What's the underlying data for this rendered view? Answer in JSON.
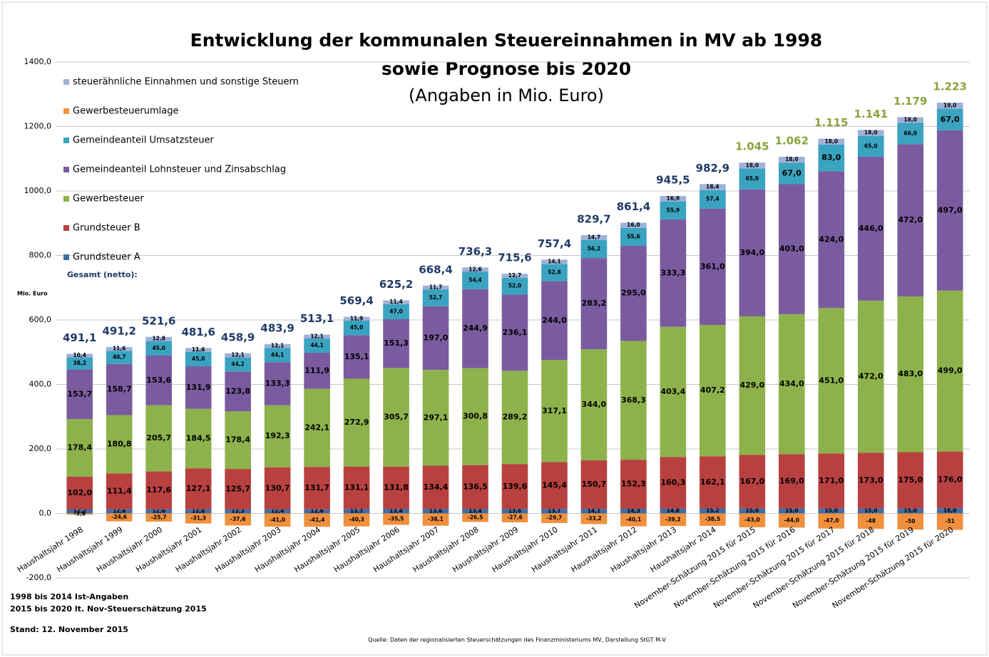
{
  "chart_data": {
    "type": "stacked_bar",
    "title": "Entwicklung der kommunalen Steuereinnahmen in MV ab 1998",
    "subtitle": "sowie Prognose bis 2020",
    "subtitle2": "(Angaben in Mio. Euro)",
    "y_label": "Mio. Euro",
    "totals_legend": "Gesamt (netto):",
    "notes": [
      "1998 bis 2014 Ist-Angaben",
      "2015 bis 2020 lt. Nov-Steuerschätzung 2015",
      "Stand: 12. November 2015"
    ],
    "source": "Quelle: Daten der regionalisierten Steuerschätzungen des Finanzministeriums MV, Darstellung StGT M-V",
    "categories": [
      "Haushaltsjahr 1998",
      "Haushaltsjahr 1999",
      "Haushaltsjahr 2000",
      "Haushaltsjahr 2001",
      "Haushaltsjahr 2002",
      "Haushaltsjahr 2003",
      "Haushaltsjahr 2004",
      "Haushaltsjahr 2005",
      "Haushaltsjahr 2006",
      "Haushaltsjahr 2007",
      "Haushaltsjahr 2008",
      "Haushaltsjahr 2009",
      "Haushaltsjahr 2010",
      "Haushaltsjahr 2011",
      "Haushaltsjahr 2012",
      "Haushaltsjahr 2013",
      "Haushaltsjahr 2014",
      "November-Schätzung 2015 für 2015",
      "November-Schätzung 2015 für 2016",
      "November-Schätzung 2015 für 2017",
      "November-Schätzung 2015 für 2018",
      "November-Schätzung 2015 für 2019",
      "November-Schätzung 2015 für 2020"
    ],
    "ylim": [
      -200,
      1400
    ],
    "yticks": [
      {
        "value": -200,
        "label": "-200,0"
      },
      {
        "value": 0,
        "label": "0,0"
      },
      {
        "value": 200,
        "label": "200,0"
      },
      {
        "value": 400,
        "label": "400,0"
      },
      {
        "value": 600,
        "label": "600,0"
      },
      {
        "value": 800,
        "label": "800,0"
      },
      {
        "value": 1000,
        "label": "1000,0"
      },
      {
        "value": 1200,
        "label": "1200,0"
      },
      {
        "value": 1400,
        "label": "1400,0"
      }
    ],
    "grid": true,
    "series": [
      {
        "name": "Grundsteuer A",
        "color": "#3e6ea8",
        "values": [
          12.2,
          12.6,
          12.6,
          12.8,
          12.3,
          12.4,
          12.6,
          13.7,
          13.4,
          13.6,
          13.4,
          13.6,
          13.7,
          14.1,
          14.3,
          14.8,
          15.2,
          15.0,
          15.0,
          15.0,
          15.0,
          15.0,
          16.0
        ],
        "value_labels": [
          "12,2",
          "12,6",
          "12,6",
          "12,8",
          "12,3",
          "12,4",
          "12,6",
          "13,7",
          "13,4",
          "13,6",
          "13,4",
          "13,6",
          "13,7",
          "14,1",
          "14,3",
          "14,8",
          "15,2",
          "15,0",
          "15,0",
          "15,0",
          "15,0",
          "15,0",
          "16,0"
        ]
      },
      {
        "name": "Grundsteuer B",
        "color": "#b8413f",
        "values": [
          102.0,
          111.4,
          117.6,
          127.1,
          125.7,
          130.7,
          131.7,
          131.1,
          131.8,
          134.4,
          136.5,
          139.6,
          145.4,
          150.7,
          152.3,
          160.3,
          162.1,
          167.0,
          169.0,
          171.0,
          173.0,
          175.0,
          176.0
        ],
        "value_labels": [
          "102,0",
          "111,4",
          "117,6",
          "127,1",
          "125,7",
          "130,7",
          "131,7",
          "131,1",
          "131,8",
          "134,4",
          "136,5",
          "139,6",
          "145,4",
          "150,7",
          "152,3",
          "160,3",
          "162,1",
          "167,0",
          "169,0",
          "171,0",
          "173,0",
          "175,0",
          "176,0"
        ]
      },
      {
        "name": "Gewerbesteuer",
        "color": "#8db24b",
        "values": [
          178.4,
          180.8,
          205.7,
          184.5,
          178.4,
          192.3,
          242.1,
          272.9,
          305.7,
          297.1,
          300.8,
          289.2,
          317.1,
          344.0,
          368.3,
          403.4,
          407.2,
          429.0,
          434.0,
          451.0,
          472.0,
          483.0,
          499.0
        ],
        "value_labels": [
          "178,4",
          "180,8",
          "205,7",
          "184,5",
          "178,4",
          "192,3",
          "242,1",
          "272,9",
          "305,7",
          "297,1",
          "300,8",
          "289,2",
          "317,1",
          "344,0",
          "368,3",
          "403,4",
          "407,2",
          "429,0",
          "434,0",
          "451,0",
          "472,0",
          "483,0",
          "499,0"
        ]
      },
      {
        "name": "Gemeindeanteil Lohnsteuer und Zinsabschlag",
        "color": "#7b5b9f",
        "values": [
          153.7,
          158.7,
          153.6,
          131.9,
          123.8,
          133.3,
          111.9,
          135.1,
          151.3,
          197.0,
          244.9,
          236.1,
          244.0,
          283.2,
          295.0,
          333.3,
          361.0,
          394.0,
          403.0,
          424.0,
          446.0,
          472.0,
          497.0
        ],
        "value_labels": [
          "153,7",
          "158,7",
          "153,6",
          "131,9",
          "123,8",
          "133,3",
          "111,9",
          "135,1",
          "151,3",
          "197,0",
          "244,9",
          "236,1",
          "244,0",
          "283,2",
          "295,0",
          "333,3",
          "361,0",
          "394,0",
          "403,0",
          "424,0",
          "446,0",
          "472,0",
          "497,0"
        ]
      },
      {
        "name": "Gemeindeanteil Umsatzsteuer",
        "color": "#3aa3c0",
        "values": [
          38.2,
          40.7,
          45.0,
          45.0,
          44.2,
          44.1,
          44.1,
          45.0,
          47.0,
          52.7,
          54.4,
          52.0,
          52.8,
          56.2,
          55.6,
          55.9,
          57.4,
          65.0,
          67.0,
          83.0,
          65.0,
          66.0,
          67.0
        ],
        "value_labels": [
          "38,2",
          "40,7",
          "45,0",
          "45,0",
          "44,2",
          "44,1",
          "44,1",
          "45,0",
          "47,0",
          "52,7",
          "54,4",
          "52,0",
          "52,8",
          "56,2",
          "55,6",
          "55,9",
          "57,4",
          "65,0",
          "67,0",
          "83,0",
          "65,0",
          "66,0",
          "67,0"
        ]
      },
      {
        "name": "Gewerbesteuerumlage",
        "color": "#f0903e",
        "values": [
          -3.8,
          -24.6,
          -25.7,
          -31.3,
          -37.6,
          -41.0,
          -41.4,
          -40.3,
          -35.5,
          -38.1,
          -26.5,
          -27.6,
          -29.7,
          -33.2,
          -40.1,
          -39.2,
          -38.5,
          -43.0,
          -44.0,
          -47.0,
          -48,
          -50,
          -51
        ],
        "value_labels": [
          "-3,8",
          "-24,6",
          "-25,7",
          "-31,3",
          "-37,6",
          "-41,0",
          "-41,4",
          "-40,3",
          "-35,5",
          "-38,1",
          "-26,5",
          "-27,6",
          "-29,7",
          "-33,2",
          "-40,1",
          "-39,2",
          "-38,5",
          "-43,0",
          "-44,0",
          "-47,0",
          "-48",
          "-50",
          "-51"
        ]
      },
      {
        "name": "steuerähnliche Einnahmen und sonstige Steuern",
        "color": "#9fb1d9",
        "values": [
          10.4,
          11.6,
          12.8,
          11.6,
          12.1,
          12.1,
          12.1,
          11.9,
          11.4,
          11.7,
          12.6,
          12.7,
          14.1,
          14.7,
          16.0,
          16.9,
          18.4,
          18.0,
          18.0,
          18.0,
          18.0,
          18.0,
          19.0
        ],
        "value_labels": [
          "10,4",
          "11,6",
          "12,8",
          "11,6",
          "12,1",
          "12,1",
          "12,1",
          "11,9",
          "11,4",
          "11,7",
          "12,6",
          "12,7",
          "14,1",
          "14,7",
          "16,0",
          "16,9",
          "18,4",
          "18,0",
          "18,0",
          "18,0",
          "18,0",
          "18,0",
          "19,0"
        ]
      }
    ],
    "totals": {
      "values": [
        491.1,
        491.2,
        521.6,
        481.6,
        458.9,
        483.9,
        513.1,
        569.4,
        625.2,
        668.4,
        736.3,
        715.6,
        757.4,
        829.7,
        861.4,
        945.5,
        982.9,
        1045,
        1062,
        1115,
        1141,
        1179,
        1223
      ],
      "value_labels": [
        "491,1",
        "491,2",
        "521,6",
        "481,6",
        "458,9",
        "483,9",
        "513,1",
        "569,4",
        "625,2",
        "668,4",
        "736,3",
        "715,6",
        "757,4",
        "829,7",
        "861,4",
        "945,5",
        "982,9",
        "1.045",
        "1.062",
        "1.115",
        "1.141",
        "1.179",
        "1.223"
      ],
      "colors": [
        "#1f3a66",
        "#1f3a66",
        "#1f3a66",
        "#1f3a66",
        "#1f3a66",
        "#1f3a66",
        "#1f3a66",
        "#1f3a66",
        "#1f3a66",
        "#1f3a66",
        "#1f3a66",
        "#1f3a66",
        "#1f3a66",
        "#1f3a66",
        "#1f3a66",
        "#1f3a66",
        "#1f3a66",
        "#8aa33a",
        "#8aa33a",
        "#8aa33a",
        "#8aa33a",
        "#8aa33a",
        "#8aa33a"
      ]
    }
  }
}
